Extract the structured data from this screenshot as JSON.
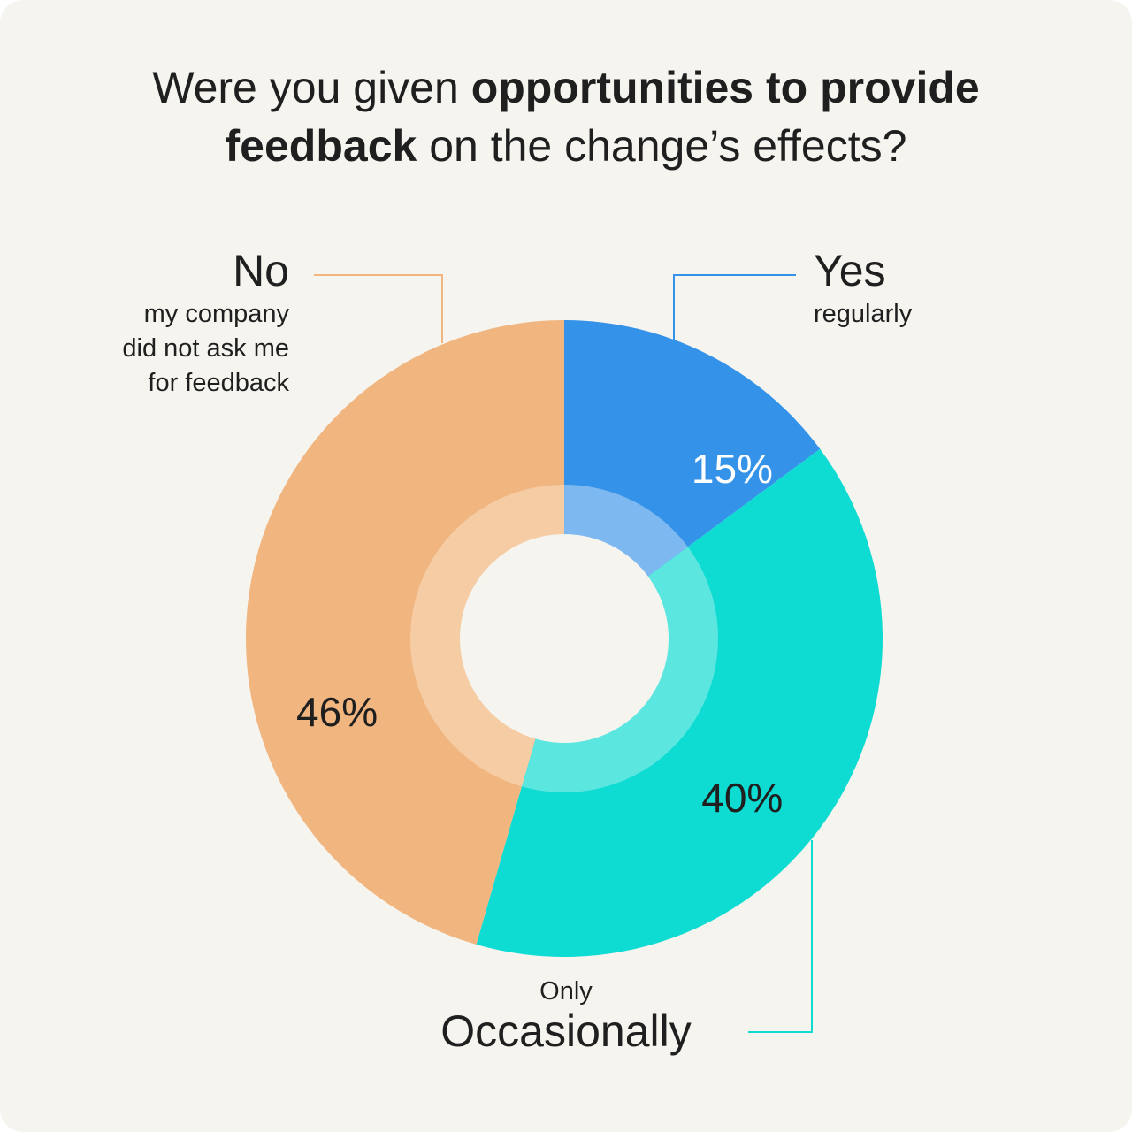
{
  "title": {
    "part1": "Were you given ",
    "bold1": "opportunities to provide",
    "bold2": "feedback",
    "part2": " on the change’s effects?"
  },
  "chart_data": {
    "type": "pie",
    "donut": true,
    "slices": [
      {
        "label": "Yes",
        "sublabel": "regularly",
        "value": 15,
        "value_label": "15%",
        "color": "#3493e8",
        "inner_color": "#7db8f0"
      },
      {
        "label": "Occasionally",
        "sublabel": "Only",
        "value": 40,
        "value_label": "40%",
        "color": "#0edbd2",
        "inner_color": "#5ce6e0"
      },
      {
        "label": "No",
        "sublabel": "my company did not ask me for feedback",
        "value": 46,
        "value_label": "46%",
        "color": "#f1b57f",
        "inner_color": "#f5cca4"
      }
    ]
  },
  "labels": {
    "no": {
      "main": "No",
      "sub": [
        "my company",
        "did not ask me",
        "for feedback"
      ]
    },
    "yes": {
      "main": "Yes",
      "sub": "regularly"
    },
    "occ": {
      "pre": "Only",
      "main": "Occasionally"
    }
  },
  "colors": {
    "background": "#f5f4ef",
    "text": "#1f1f1f",
    "center": "#f5f4ef"
  }
}
